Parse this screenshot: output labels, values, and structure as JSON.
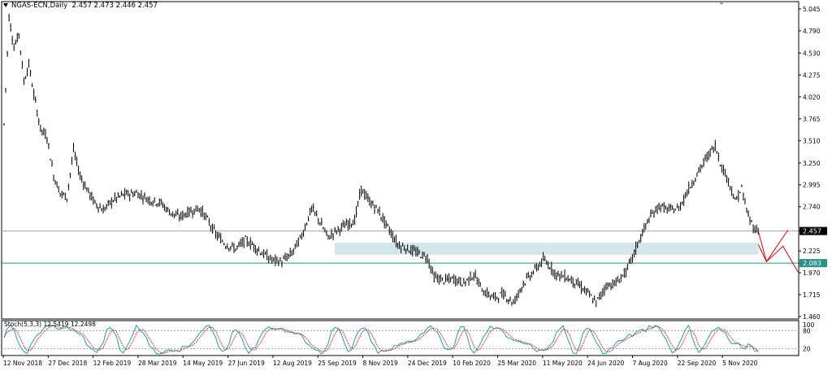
{
  "header": {
    "symbol": "NGAS-ECN,Daily",
    "ohlc": "2.457 2.473 2.446 2.457"
  },
  "colors": {
    "candle": "#000000",
    "zone": "#d3e6ea",
    "support_line": "#2a8f86",
    "current_price_line": "#a0a0a0",
    "projection": "#e00000",
    "stoch_main": "#1aa3a3",
    "stoch_signal": "#e03030",
    "stoch_level": "#a0a0a0"
  },
  "chart_data": [
    {
      "type": "candlestick",
      "symbol": "NGAS-ECN",
      "timeframe": "Daily",
      "y_ticks": [
        "5.045",
        "4.790",
        "4.530",
        "4.275",
        "4.020",
        "3.765",
        "3.510",
        "3.250",
        "2.995",
        "2.740",
        "2.457",
        "2.225",
        "2.083",
        "1.970",
        "1.715",
        "1.460"
      ],
      "ylim": [
        1.46,
        5.045
      ],
      "x_ticks": [
        "12 Nov 2018",
        "27 Dec 2018",
        "12 Feb 2019",
        "28 Mar 2019",
        "14 May 2019",
        "27 Jun 2019",
        "12 Aug 2019",
        "25 Sep 2019",
        "8 Nov 2019",
        "24 Dec 2019",
        "10 Feb 2020",
        "25 Mar 2020",
        "11 May 2020",
        "24 Jun 2020",
        "7 Aug 2020",
        "22 Sep 2020",
        "5 Nov 2020"
      ],
      "price_path": [
        {
          "t": 0,
          "p": 3.7
        },
        {
          "t": 3,
          "p": 4.95
        },
        {
          "t": 6,
          "p": 4.6
        },
        {
          "t": 9,
          "p": 4.75
        },
        {
          "t": 12,
          "p": 4.2
        },
        {
          "t": 15,
          "p": 4.4
        },
        {
          "t": 18,
          "p": 4.05
        },
        {
          "t": 22,
          "p": 3.65
        },
        {
          "t": 26,
          "p": 3.55
        },
        {
          "t": 30,
          "p": 3.1
        },
        {
          "t": 34,
          "p": 2.9
        },
        {
          "t": 38,
          "p": 2.85
        },
        {
          "t": 42,
          "p": 3.4
        },
        {
          "t": 46,
          "p": 3.1
        },
        {
          "t": 50,
          "p": 2.95
        },
        {
          "t": 55,
          "p": 2.78
        },
        {
          "t": 60,
          "p": 2.7
        },
        {
          "t": 66,
          "p": 2.82
        },
        {
          "t": 72,
          "p": 2.88
        },
        {
          "t": 80,
          "p": 2.9
        },
        {
          "t": 88,
          "p": 2.82
        },
        {
          "t": 95,
          "p": 2.78
        },
        {
          "t": 100,
          "p": 2.68
        },
        {
          "t": 106,
          "p": 2.62
        },
        {
          "t": 112,
          "p": 2.68
        },
        {
          "t": 118,
          "p": 2.72
        },
        {
          "t": 122,
          "p": 2.62
        },
        {
          "t": 128,
          "p": 2.42
        },
        {
          "t": 134,
          "p": 2.3
        },
        {
          "t": 140,
          "p": 2.25
        },
        {
          "t": 146,
          "p": 2.35
        },
        {
          "t": 150,
          "p": 2.3
        },
        {
          "t": 156,
          "p": 2.2
        },
        {
          "t": 162,
          "p": 2.12
        },
        {
          "t": 168,
          "p": 2.1
        },
        {
          "t": 174,
          "p": 2.2
        },
        {
          "t": 180,
          "p": 2.4
        },
        {
          "t": 186,
          "p": 2.72
        },
        {
          "t": 190,
          "p": 2.6
        },
        {
          "t": 196,
          "p": 2.38
        },
        {
          "t": 200,
          "p": 2.45
        },
        {
          "t": 206,
          "p": 2.52
        },
        {
          "t": 212,
          "p": 2.58
        },
        {
          "t": 216,
          "p": 2.95
        },
        {
          "t": 220,
          "p": 2.82
        },
        {
          "t": 226,
          "p": 2.7
        },
        {
          "t": 232,
          "p": 2.5
        },
        {
          "t": 238,
          "p": 2.3
        },
        {
          "t": 244,
          "p": 2.25
        },
        {
          "t": 250,
          "p": 2.2
        },
        {
          "t": 256,
          "p": 2.15
        },
        {
          "t": 260,
          "p": 1.92
        },
        {
          "t": 266,
          "p": 1.88
        },
        {
          "t": 272,
          "p": 1.9
        },
        {
          "t": 278,
          "p": 1.85
        },
        {
          "t": 284,
          "p": 1.95
        },
        {
          "t": 290,
          "p": 1.75
        },
        {
          "t": 296,
          "p": 1.68
        },
        {
          "t": 302,
          "p": 1.72
        },
        {
          "t": 308,
          "p": 1.62
        },
        {
          "t": 314,
          "p": 1.85
        },
        {
          "t": 320,
          "p": 1.98
        },
        {
          "t": 326,
          "p": 2.12
        },
        {
          "t": 330,
          "p": 2.05
        },
        {
          "t": 334,
          "p": 1.95
        },
        {
          "t": 340,
          "p": 1.92
        },
        {
          "t": 346,
          "p": 1.85
        },
        {
          "t": 352,
          "p": 1.75
        },
        {
          "t": 358,
          "p": 1.62
        },
        {
          "t": 364,
          "p": 1.82
        },
        {
          "t": 370,
          "p": 1.85
        },
        {
          "t": 376,
          "p": 1.98
        },
        {
          "t": 380,
          "p": 2.15
        },
        {
          "t": 384,
          "p": 2.35
        },
        {
          "t": 390,
          "p": 2.6
        },
        {
          "t": 396,
          "p": 2.75
        },
        {
          "t": 402,
          "p": 2.7
        },
        {
          "t": 408,
          "p": 2.72
        },
        {
          "t": 414,
          "p": 2.95
        },
        {
          "t": 420,
          "p": 3.15
        },
        {
          "t": 426,
          "p": 3.35
        },
        {
          "t": 430,
          "p": 3.45
        },
        {
          "t": 434,
          "p": 3.2
        },
        {
          "t": 438,
          "p": 3.05
        },
        {
          "t": 442,
          "p": 2.8
        },
        {
          "t": 446,
          "p": 2.95
        },
        {
          "t": 450,
          "p": 2.62
        },
        {
          "t": 454,
          "p": 2.48
        },
        {
          "t": 456,
          "p": 2.457
        }
      ],
      "last_price": "2.457",
      "support_level": "2.083",
      "zone": {
        "from": 2.18,
        "to": 2.32
      },
      "projection": [
        {
          "t": 456,
          "p": 2.457
        },
        {
          "t": 461,
          "p": 2.1
        },
        {
          "t": 474,
          "p": 2.47
        },
        {
          "t": 456,
          "p": 2.3
        },
        {
          "t": 461,
          "p": 2.1
        },
        {
          "t": 471,
          "p": 2.28
        },
        {
          "t": 480,
          "p": 1.98
        }
      ]
    },
    {
      "type": "line",
      "name": "Stoch(5,3,3) 12.5419 12.2498",
      "y_ticks": [
        "100",
        "80",
        "20"
      ],
      "ylim": [
        0,
        100
      ],
      "levels": [
        80,
        20
      ],
      "last_values": [
        12.5419,
        12.2498
      ]
    }
  ]
}
